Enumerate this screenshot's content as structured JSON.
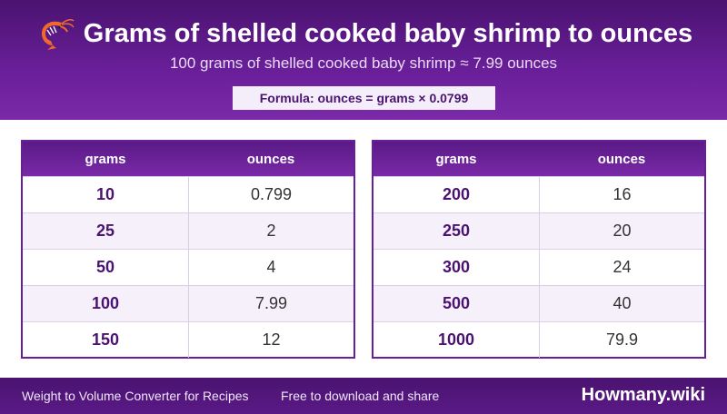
{
  "header": {
    "title": "Grams of shelled cooked baby shrimp to ounces",
    "subtitle": "100 grams of shelled cooked baby shrimp ≈ 7.99 ounces",
    "formula": "Formula: ounces = grams × 0.0799",
    "icon": "shrimp-icon"
  },
  "tables": {
    "columns": [
      "grams",
      "ounces"
    ],
    "left": [
      {
        "grams": "10",
        "ounces": "0.799"
      },
      {
        "grams": "25",
        "ounces": "2"
      },
      {
        "grams": "50",
        "ounces": "4"
      },
      {
        "grams": "100",
        "ounces": "7.99"
      },
      {
        "grams": "150",
        "ounces": "12"
      }
    ],
    "right": [
      {
        "grams": "200",
        "ounces": "16"
      },
      {
        "grams": "250",
        "ounces": "20"
      },
      {
        "grams": "300",
        "ounces": "24"
      },
      {
        "grams": "500",
        "ounces": "40"
      },
      {
        "grams": "1000",
        "ounces": "79.9"
      }
    ]
  },
  "footer": {
    "left": "Weight to Volume Converter for Recipes",
    "middle": "Free to download and share",
    "brand": "Howmany.wiki"
  },
  "colors": {
    "accent": "#6a1f9a",
    "header_dark": "#4a1370",
    "shrimp": "#ef6a2a"
  }
}
